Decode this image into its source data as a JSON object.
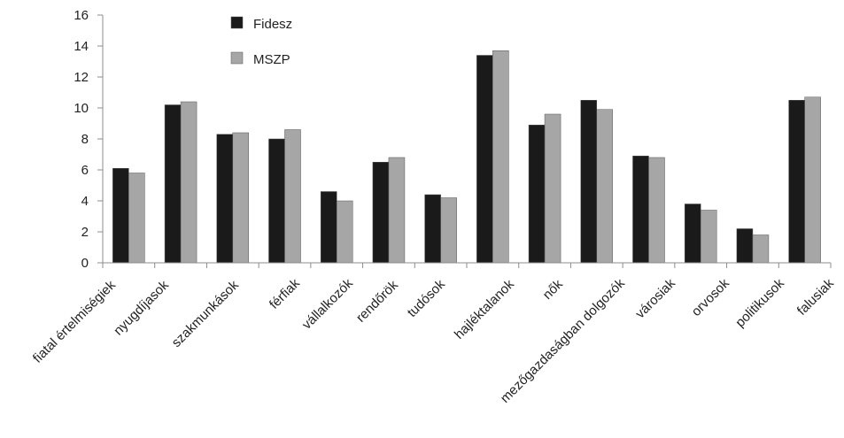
{
  "chart_data": {
    "type": "bar",
    "categories": [
      "fiatal értelmiségiek",
      "nyugdíjasok",
      "szakmunkások",
      "férfiak",
      "vállalkozók",
      "rendőrök",
      "tudósok",
      "hajléktalanok",
      "nők",
      "mezőgazdaságban dolgozók",
      "városiak",
      "orvosok",
      "politikusok",
      "falusiak"
    ],
    "series": [
      {
        "name": "Fidesz",
        "color": "#1a1a1a",
        "values": [
          6.1,
          10.2,
          8.3,
          8.0,
          4.6,
          6.5,
          4.4,
          13.4,
          8.9,
          10.5,
          6.9,
          3.8,
          2.2,
          10.5
        ]
      },
      {
        "name": "MSZP",
        "color": "#a6a6a6",
        "values": [
          5.8,
          10.4,
          8.4,
          8.6,
          4.0,
          6.8,
          4.2,
          13.7,
          9.6,
          9.9,
          6.8,
          3.4,
          1.8,
          10.7
        ]
      }
    ],
    "ylim": [
      0,
      16
    ],
    "yticks": [
      0,
      2,
      4,
      6,
      8,
      10,
      12,
      14,
      16
    ],
    "grid": false,
    "legend_position": "top-left"
  }
}
